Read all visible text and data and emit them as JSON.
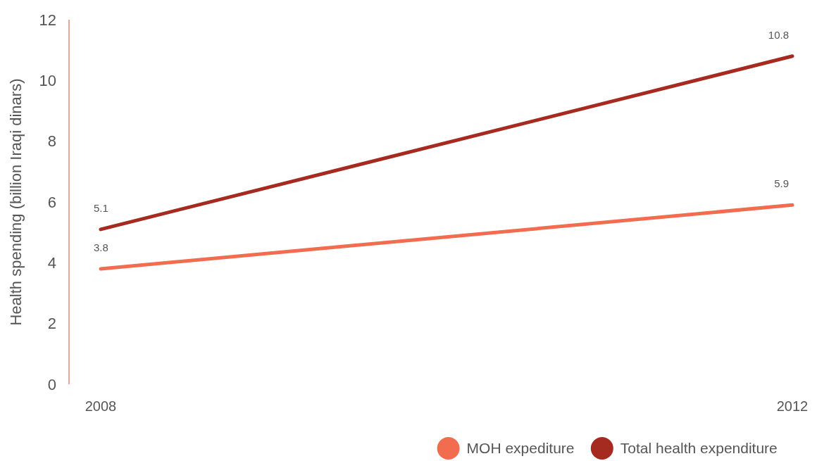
{
  "chart_data": {
    "type": "line",
    "ylabel": "Health spending (billion Iraqi dinars)",
    "categories": [
      "2008",
      "2012"
    ],
    "ylim": [
      0,
      12
    ],
    "yticks": [
      0,
      2,
      4,
      6,
      8,
      10,
      12
    ],
    "grid": false,
    "legend": "bottom right",
    "data_labels": true,
    "marker": "none",
    "line_style": "solid",
    "series": [
      {
        "name": "MOH expediture",
        "color": "#f26c4f",
        "values": [
          3.8,
          5.9
        ]
      },
      {
        "name": "Total health expenditure",
        "color": "#a52a1f",
        "values": [
          5.1,
          10.8
        ]
      }
    ]
  }
}
